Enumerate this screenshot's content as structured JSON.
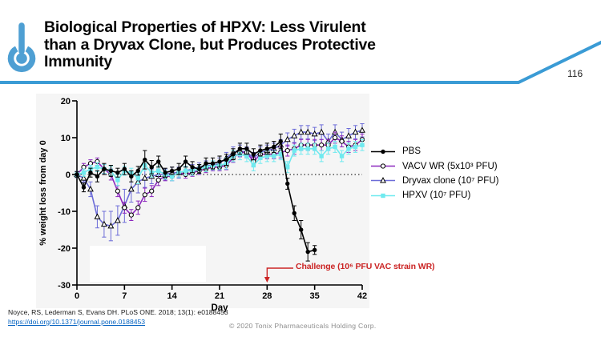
{
  "header": {
    "title": "Biological Properties of HPXV: Less Virulent\nthan a Dryvax Clone, but Produces Protective\nImmunity",
    "page_number": "116",
    "accent_color": "#3A9BD5",
    "logo_color": "#4E9FD3"
  },
  "chart_data": {
    "type": "line",
    "title": "",
    "xlabel": "Day",
    "ylabel": "% weight loss from day 0",
    "xlim": [
      0,
      42
    ],
    "ylim": [
      -30,
      20
    ],
    "xticks": [
      0,
      7,
      14,
      21,
      28,
      35,
      42
    ],
    "yticks": [
      -30,
      -20,
      -10,
      0,
      10,
      20
    ],
    "zero_line_dotted": true,
    "plot_background": "#f5f5f5",
    "legend_position": "right",
    "series": [
      {
        "name": "PBS",
        "color": "#000000",
        "marker": "filled-circle",
        "x": [
          0,
          1,
          2,
          3,
          4,
          5,
          6,
          7,
          8,
          9,
          10,
          11,
          12,
          13,
          14,
          15,
          16,
          17,
          18,
          19,
          20,
          21,
          22,
          23,
          24,
          25,
          26,
          27,
          28,
          29,
          30,
          31,
          32,
          33,
          34,
          35
        ],
        "y": [
          0,
          -3.5,
          0.5,
          -0.5,
          1.5,
          1,
          0.5,
          1.5,
          -0.5,
          1,
          4,
          2,
          3.5,
          0.5,
          1,
          1.5,
          3.5,
          2,
          1.5,
          3,
          3,
          3.5,
          4,
          5.5,
          7,
          7,
          5.5,
          6.5,
          7,
          7.5,
          9,
          -2.5,
          -10.5,
          -15,
          -21,
          -20.5
        ],
        "err": [
          0.8,
          1.2,
          1.2,
          1.5,
          1.5,
          1.5,
          1.2,
          1.5,
          1.5,
          1.2,
          2.5,
          1.8,
          1.5,
          1.2,
          1,
          1.5,
          1.5,
          1.5,
          1.2,
          1.5,
          1.5,
          1.5,
          1.5,
          1.5,
          1.5,
          1.5,
          1.5,
          1.5,
          1.5,
          1.5,
          2,
          1.5,
          2,
          2.5,
          2.5,
          1.2
        ]
      },
      {
        "name": "VACV WR (5x10³ PFU)",
        "color": "#8C28BE",
        "marker": "open-circle",
        "x": [
          0,
          1,
          2,
          3,
          4,
          5,
          6,
          7,
          8,
          9,
          10,
          11,
          12,
          13,
          14,
          15,
          16,
          17,
          18,
          19,
          20,
          21,
          22,
          23,
          24,
          25,
          26,
          27,
          28,
          29,
          30,
          31,
          32,
          33,
          34,
          35,
          36,
          37,
          38,
          39,
          40,
          41,
          42
        ],
        "y": [
          0,
          2,
          3,
          3.5,
          1.5,
          0,
          -4.5,
          -9,
          -11,
          -9,
          -5.5,
          -4.5,
          -1.5,
          -0.5,
          -0.5,
          0.5,
          0,
          0.5,
          1,
          1.5,
          2,
          2,
          2.5,
          4.5,
          6,
          6,
          3.5,
          5.5,
          5.5,
          5.5,
          6,
          6.5,
          7,
          8,
          8,
          8,
          8,
          8,
          10,
          9,
          7.5,
          8,
          9.5
        ],
        "err": [
          0.8,
          1,
          1,
          1,
          1.2,
          1.5,
          1.5,
          1.5,
          1.5,
          1.8,
          1.8,
          1.5,
          1.5,
          1.2,
          1.2,
          1.2,
          1,
          1,
          1,
          1,
          1,
          1,
          1.2,
          1.2,
          1.2,
          1.2,
          1.2,
          1.2,
          1.2,
          1.2,
          1.5,
          1.5,
          1.5,
          1.5,
          1.5,
          1.5,
          1.5,
          1.5,
          1.5,
          1.5,
          1.5,
          1.5,
          1.5
        ]
      },
      {
        "name": "Dryvax clone (10⁷ PFU)",
        "color": "#6C6CD8",
        "marker": "open-triangle",
        "x": [
          0,
          1,
          2,
          3,
          4,
          5,
          6,
          7,
          8,
          9,
          10,
          11,
          12,
          13,
          14,
          15,
          16,
          17,
          18,
          19,
          20,
          21,
          22,
          23,
          24,
          25,
          26,
          27,
          28,
          29,
          30,
          31,
          32,
          33,
          34,
          35,
          36,
          37,
          38,
          39,
          40,
          41,
          42
        ],
        "y": [
          0,
          -1,
          -4,
          -11.5,
          -13.5,
          -14,
          -12.5,
          -8.5,
          -4,
          -2,
          -1,
          -0.5,
          0,
          0,
          0.5,
          0.5,
          1,
          1.5,
          2,
          2.5,
          2.5,
          3,
          4.5,
          6,
          6.5,
          6,
          4.5,
          6,
          6.5,
          7,
          8,
          9.5,
          10.5,
          11.5,
          11.5,
          11,
          11.5,
          9,
          11.5,
          9.5,
          10.5,
          11.5,
          12
        ],
        "err": [
          0.8,
          1,
          2,
          3,
          3.5,
          4,
          4,
          4.5,
          3.5,
          3,
          2.5,
          2,
          1.5,
          1.5,
          1.5,
          1.5,
          1.2,
          1.2,
          1.2,
          1.2,
          1.2,
          1.5,
          1.5,
          1.5,
          1.5,
          1.5,
          1.5,
          1.5,
          1.5,
          1.5,
          1.5,
          1.8,
          1.8,
          1.8,
          1.8,
          1.8,
          2,
          2,
          2,
          2,
          2,
          1.8,
          1.8
        ]
      },
      {
        "name": "HPXV (10⁷ PFU)",
        "color": "#6FEAEF",
        "marker": "filled-square",
        "x": [
          0,
          1,
          2,
          3,
          4,
          5,
          6,
          7,
          8,
          9,
          10,
          11,
          12,
          13,
          14,
          15,
          16,
          17,
          18,
          19,
          20,
          21,
          22,
          23,
          24,
          25,
          26,
          27,
          28,
          29,
          30,
          31,
          32,
          33,
          34,
          35,
          36,
          37,
          38,
          39,
          40,
          41,
          42
        ],
        "y": [
          0,
          0.5,
          1.5,
          2,
          1.5,
          1,
          -1.5,
          1,
          0.5,
          -1,
          2.5,
          0.5,
          1,
          0,
          -0.5,
          0.5,
          1,
          1,
          1.5,
          2,
          2.5,
          2.5,
          3,
          5,
          5.5,
          5,
          2.5,
          4.5,
          5,
          5,
          5.5,
          2,
          6.5,
          7,
          7,
          7,
          5,
          7,
          7.5,
          5,
          7,
          7.5,
          8
        ],
        "err": [
          0.8,
          1,
          1,
          1.2,
          1.2,
          1.2,
          1.5,
          1.2,
          1.2,
          1.5,
          1.5,
          1.2,
          1.2,
          1.2,
          1.2,
          1.2,
          1.2,
          1.2,
          1.2,
          1.2,
          1.2,
          1.2,
          1.5,
          1.5,
          1.5,
          1.5,
          1.5,
          1.5,
          1.5,
          1.5,
          1.5,
          1.5,
          1.5,
          1.5,
          1.5,
          1.5,
          1.5,
          1.5,
          1.5,
          1.5,
          1.5,
          1.5,
          1.5
        ]
      }
    ],
    "annotation": {
      "text": "Challenge (10⁶ PFU VAC strain WR)",
      "color": "#CB2424",
      "arrow_day": 28
    }
  },
  "footer": {
    "citation": "Noyce, RS, Lederman S, Evans DH. PLoS ONE. 2018; 13(1): e0188453",
    "link": "https://doi.org/10.1371/journal.pone.0188453",
    "copyright": "© 2020 Tonix Pharmaceuticals Holding Corp."
  }
}
